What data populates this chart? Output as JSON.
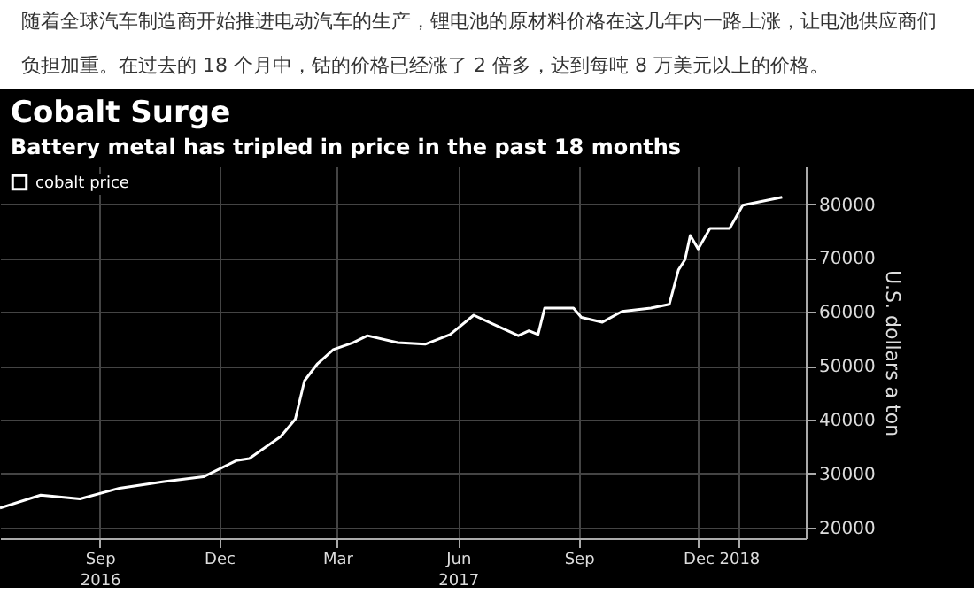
{
  "chart_data": {
    "type": "line",
    "title": "Cobalt Surge",
    "subtitle": "Battery metal has tripled in price in the past 18 months",
    "ylabel": "U.S. dollars a ton",
    "annotations": [
      "随着全球汽车制造商开始推进电动汽车的生产，锂电池的原材料价格在这几年内一路上涨，让电池供应商们负担加重。在过去的 18 个月中，钴的价格已经涨了 2 倍多，达到每吨 8 万美元以上的价格。"
    ],
    "x": [
      "2016-06-17",
      "2016-07-18",
      "2016-08-17",
      "2016-09-16",
      "2016-10-20",
      "2016-11-19",
      "2016-12-14",
      "2016-12-24",
      "2017-01-17",
      "2017-01-28",
      "2017-02-04",
      "2017-02-14",
      "2017-02-26",
      "2017-03-13",
      "2017-03-24",
      "2017-04-16",
      "2017-05-07",
      "2017-05-26",
      "2017-06-13",
      "2017-06-30",
      "2017-07-17",
      "2017-07-25",
      "2017-08-01",
      "2017-08-06",
      "2017-08-28",
      "2017-09-03",
      "2017-09-19",
      "2017-10-04",
      "2017-10-26",
      "2017-11-09",
      "2017-11-16",
      "2017-11-21",
      "2017-11-25",
      "2017-12-01",
      "2017-12-10",
      "2017-12-25",
      "2017-12-31",
      "2018-01-04",
      "2018-02-03"
    ],
    "series": [
      {
        "name": "cobalt price",
        "color": "#ffffff",
        "values": [
          23600,
          26000,
          25300,
          27300,
          28500,
          29400,
          32400,
          32800,
          36900,
          40100,
          47200,
          50400,
          53000,
          54300,
          55600,
          54300,
          54000,
          55800,
          59400,
          57500,
          55600,
          56500,
          55800,
          60700,
          60700,
          59000,
          58100,
          60100,
          60700,
          61400,
          67800,
          69700,
          74200,
          71700,
          75500,
          75500,
          78100,
          79800,
          81300
        ]
      }
    ],
    "xlim": [
      "2016-06-17",
      "2018-02-21"
    ],
    "xticks": [
      {
        "value": "2016-09-01",
        "label": "Sep 2016"
      },
      {
        "value": "2016-12-01",
        "label": "Dec"
      },
      {
        "value": "2017-03-01",
        "label": "Mar"
      },
      {
        "value": "2017-06-01",
        "label": "Jun 2017"
      },
      {
        "value": "2017-09-01",
        "label": "Sep"
      },
      {
        "value": "2017-12-01",
        "label": "Dec"
      },
      {
        "value": "2018-01-01",
        "label": "2018"
      }
    ],
    "ylim": [
      18000,
      87000
    ],
    "yticks": [
      20000,
      30000,
      40000,
      50000,
      60000,
      70000,
      80000
    ],
    "grid": true,
    "legend": "top left",
    "marker": "none",
    "line_style": "solid"
  }
}
